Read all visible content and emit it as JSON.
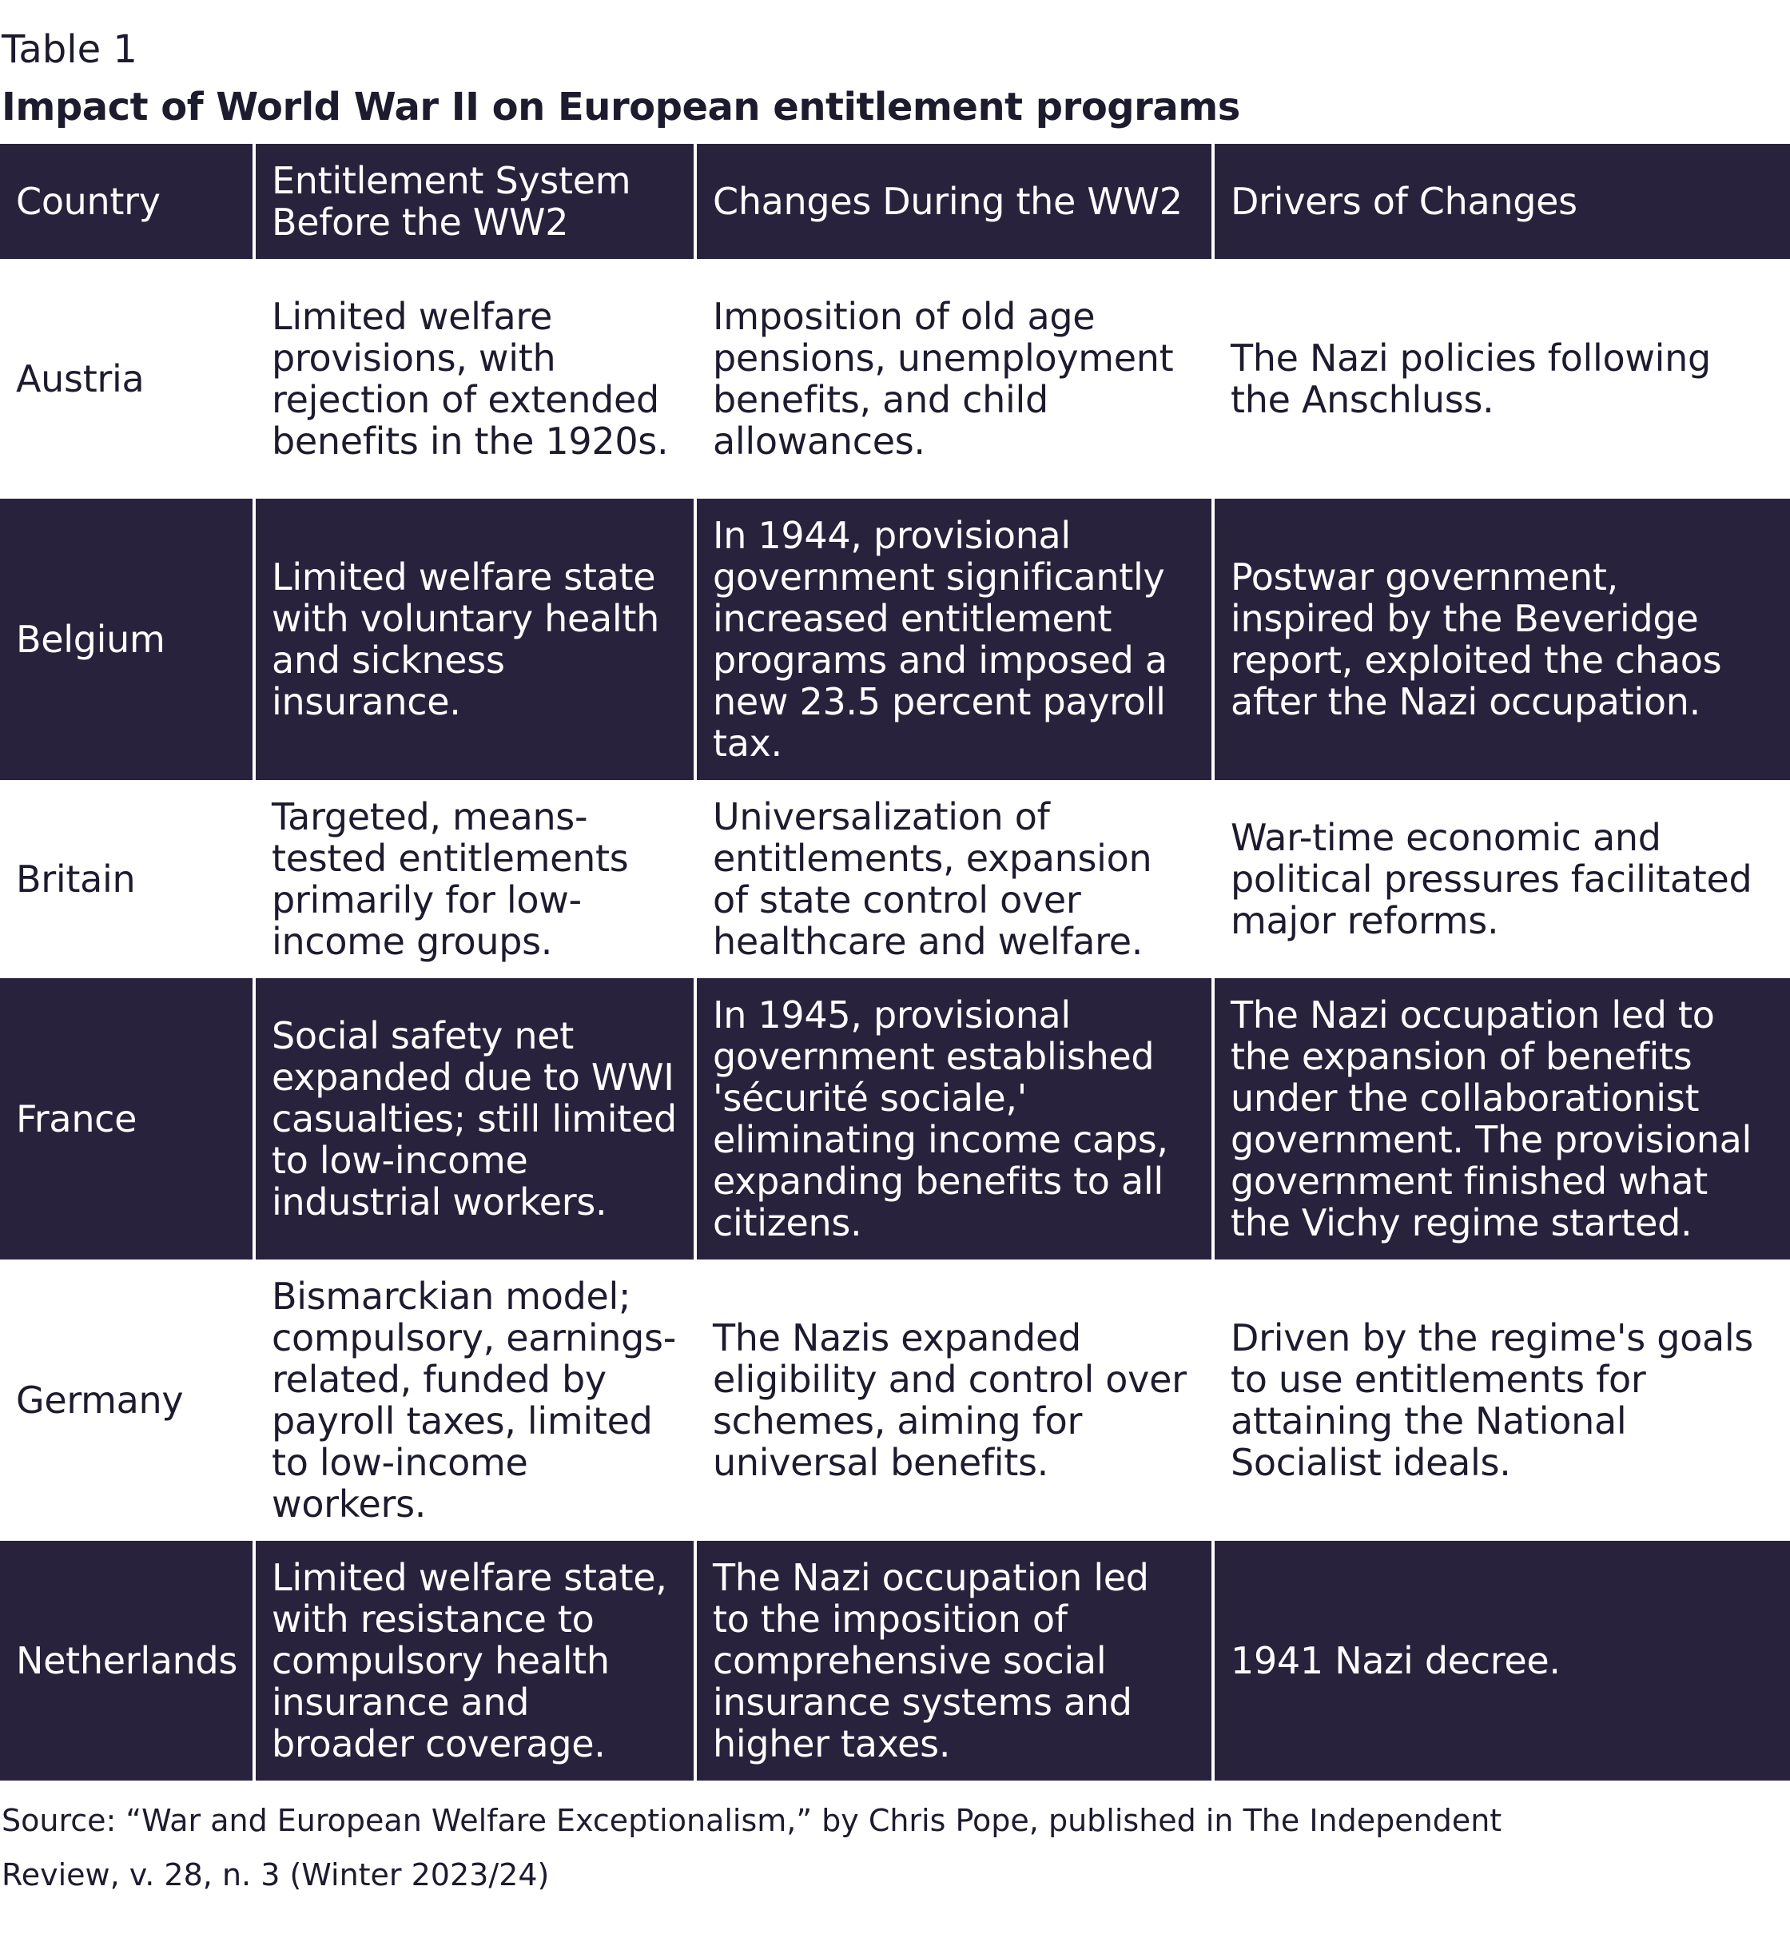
{
  "label": "Table 1",
  "title": "Impact of World War II on European entitlement programs",
  "colors": {
    "header_bg": "#28223c",
    "dark_row_bg": "#28223c",
    "light_row_bg": "#ffffff",
    "text_dark": "#1d1b2e",
    "text_light": "#ffffff"
  },
  "table": {
    "headers": [
      "Country",
      "Entitlement System Before the WW2",
      "Changes During the WW2",
      "Drivers of Changes"
    ],
    "rows": [
      {
        "country": "Austria",
        "before": "Limited welfare provisions, with rejection of extended benefits in the 1920s.",
        "changes": "Imposition of old age pensions, unemployment benefits, and child allowances.",
        "drivers": "The Nazi policies following the Anschluss."
      },
      {
        "country": "Belgium",
        "before": "Limited welfare state with voluntary health and sickness insurance.",
        "changes": "In 1944, provisional government significantly increased entitlement programs and imposed a new 23.5 percent payroll tax.",
        "drivers": "Postwar government, inspired by the Beveridge report, exploited the chaos after the Nazi occupation."
      },
      {
        "country": "Britain",
        "before": "Targeted, means-tested entitlements primarily for low-income groups.",
        "changes": "Universalization of entitlements, expansion of state control over healthcare and welfare.",
        "drivers": "War-time economic and political pressures facilitated major reforms."
      },
      {
        "country": "France",
        "before": "Social safety net expanded due to WWI casualties; still limited to low-income industrial workers.",
        "changes": "In 1945, provisional government established 'sécurité sociale,' eliminating income caps, expanding benefits to all citizens.",
        "drivers": "The Nazi occupation led to the expansion of benefits under the collaborationist government. The provisional government finished what the Vichy regime started."
      },
      {
        "country": "Germany",
        "before": "Bismarckian model; compulsory, earnings-related, funded by payroll taxes, limited to low-income workers.",
        "changes": "The Nazis expanded eligibility and control over schemes, aiming for universal benefits.",
        "drivers": "Driven by the regime's goals to use entitlements for attaining the National Socialist ideals."
      },
      {
        "country": "Netherlands",
        "before": "Limited welfare state, with resistance to compulsory health insurance and broader coverage.",
        "changes": "The Nazi occupation led to the imposition of comprehensive social insurance systems and higher taxes.",
        "drivers": "1941 Nazi decree."
      }
    ]
  },
  "source": "Source: “War and European Welfare Exceptionalism,” by Chris Pope, published in The Independent Review, v. 28, n. 3 (Winter 2023/24)"
}
